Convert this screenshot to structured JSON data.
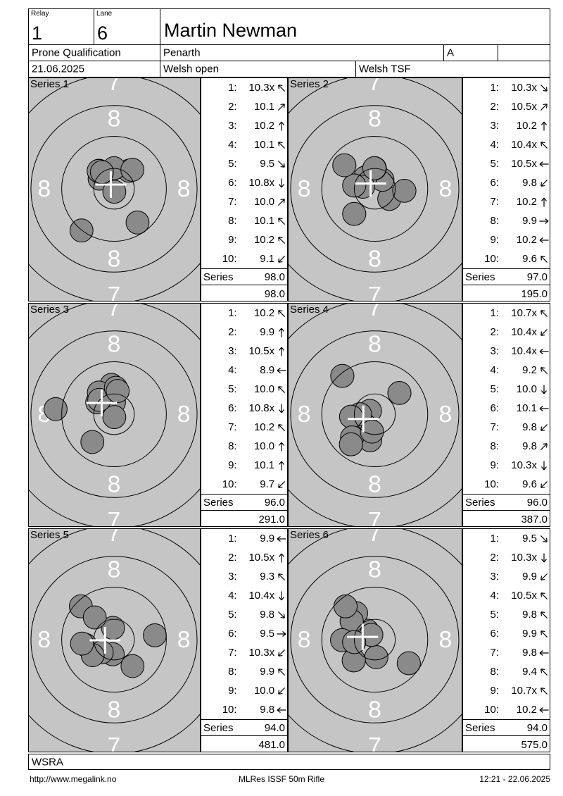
{
  "header": {
    "relay_label": "Relay",
    "relay_value": "1",
    "lane_label": "Lane",
    "lane_value": "6",
    "shooter_name": "Martin Newman",
    "discipline": "Prone Qualification",
    "venue": "Penarth",
    "class": "A",
    "date": "21.06.2025",
    "competition": "Welsh open",
    "club": "Welsh TSF"
  },
  "series_sum_label": "Series",
  "series": [
    {
      "title": "Series 1",
      "series_total": "98.0",
      "running_total": "98.0",
      "shots": [
        {
          "n": "1:",
          "score": "10.3x",
          "dir": "NW"
        },
        {
          "n": "2:",
          "score": "10.1",
          "dir": "NE"
        },
        {
          "n": "3:",
          "score": "10.2",
          "dir": "N"
        },
        {
          "n": "4:",
          "score": "10.1",
          "dir": "NW"
        },
        {
          "n": "5:",
          "score": "9.5",
          "dir": "SE"
        },
        {
          "n": "6:",
          "score": "10.8x",
          "dir": "S"
        },
        {
          "n": "7:",
          "score": "10.0",
          "dir": "NE"
        },
        {
          "n": "8:",
          "score": "10.1",
          "dir": "NW"
        },
        {
          "n": "9:",
          "score": "10.2",
          "dir": "NW"
        },
        {
          "n": "10:",
          "score": "9.1",
          "dir": "SW"
        }
      ]
    },
    {
      "title": "Series 2",
      "series_total": "97.0",
      "running_total": "195.0",
      "shots": [
        {
          "n": "1:",
          "score": "10.3x",
          "dir": "SE"
        },
        {
          "n": "2:",
          "score": "10.5x",
          "dir": "NE"
        },
        {
          "n": "3:",
          "score": "10.2",
          "dir": "N"
        },
        {
          "n": "4:",
          "score": "10.4x",
          "dir": "NW"
        },
        {
          "n": "5:",
          "score": "10.5x",
          "dir": "W"
        },
        {
          "n": "6:",
          "score": "9.8",
          "dir": "SW"
        },
        {
          "n": "7:",
          "score": "10.2",
          "dir": "N"
        },
        {
          "n": "8:",
          "score": "9.9",
          "dir": "E"
        },
        {
          "n": "9:",
          "score": "10.2",
          "dir": "W"
        },
        {
          "n": "10:",
          "score": "9.6",
          "dir": "NW"
        }
      ]
    },
    {
      "title": "Series 3",
      "series_total": "96.0",
      "running_total": "291.0",
      "shots": [
        {
          "n": "1:",
          "score": "10.2",
          "dir": "NW"
        },
        {
          "n": "2:",
          "score": "9.9",
          "dir": "N"
        },
        {
          "n": "3:",
          "score": "10.5x",
          "dir": "N"
        },
        {
          "n": "4:",
          "score": "8.9",
          "dir": "W"
        },
        {
          "n": "5:",
          "score": "10.0",
          "dir": "NW"
        },
        {
          "n": "6:",
          "score": "10.8x",
          "dir": "S"
        },
        {
          "n": "7:",
          "score": "10.2",
          "dir": "NW"
        },
        {
          "n": "8:",
          "score": "10.0",
          "dir": "N"
        },
        {
          "n": "9:",
          "score": "10.1",
          "dir": "N"
        },
        {
          "n": "10:",
          "score": "9.7",
          "dir": "SW"
        }
      ]
    },
    {
      "title": "Series 4",
      "series_total": "96.0",
      "running_total": "387.0",
      "shots": [
        {
          "n": "1:",
          "score": "10.7x",
          "dir": "NW"
        },
        {
          "n": "2:",
          "score": "10.4x",
          "dir": "SW"
        },
        {
          "n": "3:",
          "score": "10.4x",
          "dir": "W"
        },
        {
          "n": "4:",
          "score": "9.2",
          "dir": "NW"
        },
        {
          "n": "5:",
          "score": "10.0",
          "dir": "S"
        },
        {
          "n": "6:",
          "score": "10.1",
          "dir": "W"
        },
        {
          "n": "7:",
          "score": "9.8",
          "dir": "SW"
        },
        {
          "n": "8:",
          "score": "9.8",
          "dir": "NE"
        },
        {
          "n": "9:",
          "score": "10.3x",
          "dir": "S"
        },
        {
          "n": "10:",
          "score": "9.6",
          "dir": "SW"
        }
      ]
    },
    {
      "title": "Series 5",
      "series_total": "94.0",
      "running_total": "481.0",
      "shots": [
        {
          "n": "1:",
          "score": "9.9",
          "dir": "W"
        },
        {
          "n": "2:",
          "score": "10.5x",
          "dir": "N"
        },
        {
          "n": "3:",
          "score": "9.3",
          "dir": "NW"
        },
        {
          "n": "4:",
          "score": "10.4x",
          "dir": "S"
        },
        {
          "n": "5:",
          "score": "9.8",
          "dir": "SE"
        },
        {
          "n": "6:",
          "score": "9.5",
          "dir": "E"
        },
        {
          "n": "7:",
          "score": "10.3x",
          "dir": "SW"
        },
        {
          "n": "8:",
          "score": "9.9",
          "dir": "NW"
        },
        {
          "n": "9:",
          "score": "10.0",
          "dir": "SW"
        },
        {
          "n": "10:",
          "score": "9.8",
          "dir": "W"
        }
      ]
    },
    {
      "title": "Series 6",
      "series_total": "94.0",
      "running_total": "575.0",
      "shots": [
        {
          "n": "1:",
          "score": "9.5",
          "dir": "SE"
        },
        {
          "n": "2:",
          "score": "10.3x",
          "dir": "S"
        },
        {
          "n": "3:",
          "score": "9.9",
          "dir": "SW"
        },
        {
          "n": "4:",
          "score": "10.5x",
          "dir": "NW"
        },
        {
          "n": "5:",
          "score": "9.8",
          "dir": "NW"
        },
        {
          "n": "6:",
          "score": "9.9",
          "dir": "NW"
        },
        {
          "n": "7:",
          "score": "9.8",
          "dir": "W"
        },
        {
          "n": "8:",
          "score": "9.4",
          "dir": "NW"
        },
        {
          "n": "9:",
          "score": "10.7x",
          "dir": "NW"
        },
        {
          "n": "10:",
          "score": "10.2",
          "dir": "W"
        }
      ]
    }
  ],
  "target": {
    "ring_radii": [
      29,
      75,
      119,
      163,
      207
    ],
    "ring_numbers": [
      {
        "label": "8",
        "radius": 100
      },
      {
        "label": "7",
        "radius": 152
      }
    ],
    "colors": {
      "background": "#c5c5c5",
      "hole_fill": "#8a8a8a",
      "ring_stroke": "#000000",
      "number_fill": "#ffffff",
      "cross": "#ffffff"
    }
  },
  "footer": {
    "org": "WSRA",
    "url": "http://www.megalink.no",
    "report_name": "MLRes ISSF 50m Rifle",
    "printed": "12:21 - 22.06.2025"
  }
}
